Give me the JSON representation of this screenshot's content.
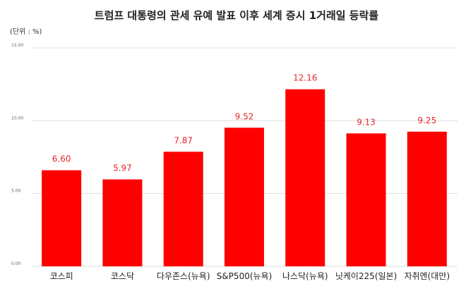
{
  "chart_data": {
    "type": "bar",
    "title": "트럼프 대통령의 관세 유예 발표 이후 세계 증시 1거래일 등락률",
    "unit_label": "(단위 : %)",
    "categories": [
      "코스피",
      "코스닥",
      "다우존스(뉴욕)",
      "S&P500(뉴욕)",
      "나스닥(뉴욕)",
      "닛케이225(일본)",
      "자취엔(대만)"
    ],
    "values": [
      6.6,
      5.97,
      7.87,
      9.52,
      12.16,
      9.13,
      9.25
    ],
    "value_labels": [
      "6.60",
      "5.97",
      "7.87",
      "9.52",
      "12.16",
      "9.13",
      "9.25"
    ],
    "yticks": [
      0,
      5,
      10,
      15
    ],
    "ytick_labels": [
      "0.00",
      "5.00",
      "10.00",
      "15.00"
    ],
    "ylim": [
      0,
      15
    ],
    "xlabel": "",
    "ylabel": "",
    "grid": true,
    "legend": "none",
    "bar_color": "#ff0000",
    "label_color": "#e8262a"
  }
}
